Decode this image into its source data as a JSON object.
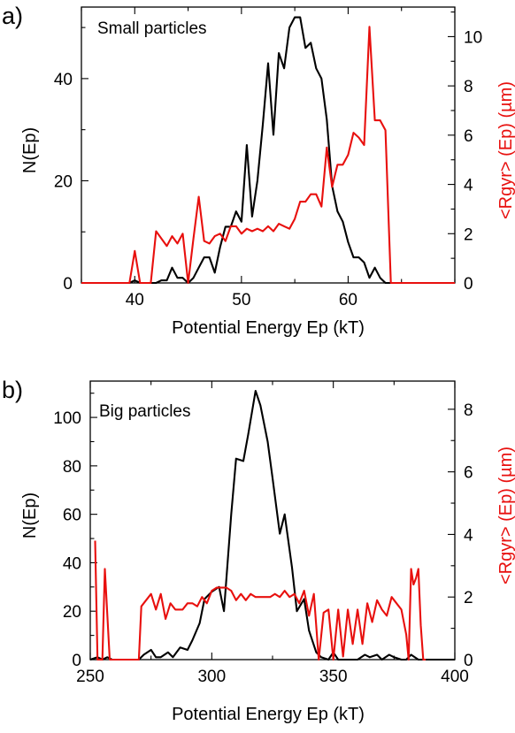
{
  "chart_data": [
    {
      "type": "line",
      "panel_label": "a)",
      "annotation": "Small particles",
      "xlabel": "Potential Energy Ep (kT)",
      "ylabel_left": "N(Ep)",
      "ylabel_right": "<Rgyr> (Ep) (µm)",
      "xlim": [
        35,
        70
      ],
      "ylim_left": [
        0,
        54
      ],
      "ylim_right": [
        0,
        11.2
      ],
      "x_ticks": [
        40,
        50,
        60
      ],
      "y_left_ticks": [
        0,
        20,
        40
      ],
      "y_right_ticks": [
        0,
        2,
        4,
        6,
        8,
        10
      ],
      "colors": {
        "left": "#000000",
        "right": "#e8100e"
      },
      "series": [
        {
          "axis": "left",
          "color": "#000000",
          "x": [
            35,
            39.5,
            40,
            40.5,
            42,
            42.5,
            43,
            43.5,
            44,
            44.5,
            45,
            45.5,
            46,
            46.5,
            47,
            47.5,
            48,
            48.5,
            49,
            49.5,
            50,
            50.5,
            51,
            51.5,
            52,
            52.5,
            53,
            53.5,
            54,
            54.5,
            55,
            55.5,
            56,
            56.5,
            57,
            57.5,
            58,
            58.5,
            59,
            59.5,
            60,
            60.5,
            61,
            61.5,
            62,
            62.5,
            63,
            63.5,
            64,
            70
          ],
          "y": [
            0,
            0,
            0.5,
            0,
            0,
            0.5,
            0.5,
            3,
            1,
            1,
            0,
            1,
            3,
            5,
            5,
            2,
            7,
            11,
            11,
            14,
            12,
            27,
            13,
            20,
            31,
            43,
            29,
            45,
            42,
            50,
            52,
            52,
            46,
            47,
            42,
            40,
            32,
            19,
            14,
            12,
            8,
            5,
            5,
            4,
            1,
            3,
            1,
            0,
            0,
            0
          ]
        },
        {
          "axis": "right",
          "color": "#e8100e",
          "x": [
            35,
            39.5,
            40,
            40.5,
            41.5,
            42,
            43,
            43.5,
            44,
            44.5,
            45,
            45.5,
            46,
            46.5,
            47,
            47.5,
            48,
            48.5,
            49,
            49.5,
            50,
            50.5,
            51,
            51.5,
            52,
            52.5,
            53,
            53.5,
            54,
            54.5,
            55,
            55.5,
            56,
            56.5,
            57,
            57.5,
            58,
            58.5,
            59,
            59.5,
            60,
            60.5,
            61,
            61.5,
            62,
            62.5,
            63,
            63.5,
            64,
            70
          ],
          "y": [
            0,
            0,
            1.3,
            0,
            0,
            2.1,
            1.5,
            1.9,
            1.6,
            2.0,
            0,
            1.8,
            3.5,
            1.7,
            1.6,
            1.9,
            2.0,
            1.7,
            2.3,
            2.3,
            2.0,
            2.2,
            2.1,
            2.2,
            2.1,
            2.3,
            2.1,
            2.4,
            2.3,
            2.2,
            2.6,
            3.3,
            3.3,
            3.6,
            3.6,
            3.1,
            5.5,
            3.9,
            4.8,
            4.8,
            5.2,
            6.1,
            5.9,
            5.6,
            10.4,
            6.6,
            6.6,
            6.2,
            0,
            0
          ]
        }
      ]
    },
    {
      "type": "line",
      "panel_label": "b)",
      "annotation": "Big particles",
      "xlabel": "Potential Energy Ep (kT)",
      "ylabel_left": "N(Ep)",
      "ylabel_right": "<Rgyr> (Ep) (µm)",
      "xlim": [
        250,
        400
      ],
      "ylim_left": [
        0,
        115
      ],
      "ylim_right": [
        0,
        8.9
      ],
      "x_ticks": [
        250,
        300,
        350,
        400
      ],
      "y_left_ticks": [
        0,
        20,
        40,
        60,
        80,
        100
      ],
      "y_right_ticks": [
        0,
        2,
        4,
        6,
        8
      ],
      "colors": {
        "left": "#000000",
        "right": "#e8100e"
      },
      "series": [
        {
          "axis": "left",
          "color": "#000000",
          "x": [
            250,
            253,
            255,
            257,
            259,
            262,
            270,
            272,
            275,
            277,
            279,
            282,
            284,
            287,
            290,
            292,
            295,
            297,
            300,
            303,
            305,
            308,
            310,
            313,
            315,
            318,
            320,
            323,
            325,
            328,
            330,
            333,
            335,
            338,
            340,
            343,
            345,
            348,
            350,
            352,
            355,
            360,
            363,
            365,
            368,
            370,
            373,
            375,
            378,
            380,
            382,
            385,
            400
          ],
          "y": [
            0,
            1,
            0,
            1,
            0,
            0,
            0,
            2,
            4,
            1,
            1,
            3,
            1,
            5,
            4,
            8,
            15,
            25,
            28,
            30,
            20,
            60,
            83,
            82,
            93,
            111,
            105,
            90,
            75,
            52,
            60,
            38,
            20,
            25,
            12,
            3,
            1,
            0,
            3,
            0,
            0,
            0,
            2,
            1,
            2,
            0,
            2,
            1,
            0,
            0,
            2,
            0,
            0
          ]
        },
        {
          "axis": "right",
          "color": "#e8100e",
          "x": [
            252,
            253,
            254,
            255,
            256,
            258,
            260,
            270,
            271,
            272,
            275,
            277,
            279,
            281,
            283,
            285,
            288,
            290,
            292,
            294,
            296,
            298,
            300,
            302,
            304,
            306,
            308,
            310,
            312,
            314,
            316,
            318,
            320,
            322,
            324,
            326,
            328,
            330,
            332,
            334,
            336,
            338,
            340,
            342,
            344,
            346,
            348,
            350,
            352,
            354,
            356,
            358,
            360,
            362,
            364,
            366,
            368,
            370,
            372,
            374,
            376,
            378,
            380,
            381,
            382,
            383,
            384,
            385,
            386,
            387,
            388
          ],
          "y": [
            3.8,
            0,
            0,
            0,
            2.9,
            0,
            0,
            0,
            1.7,
            1.8,
            2.1,
            1.6,
            2.1,
            1.3,
            1.8,
            1.6,
            1.6,
            1.8,
            1.8,
            1.7,
            2.0,
            1.8,
            2.2,
            2.3,
            2.3,
            2.3,
            2.2,
            1.9,
            2.1,
            1.9,
            2.1,
            2.0,
            2.0,
            2.0,
            2.0,
            2.1,
            2.0,
            2.2,
            2.0,
            2.1,
            1.8,
            2.2,
            1.4,
            2.1,
            0,
            1.5,
            1.6,
            0,
            1.6,
            0.1,
            1.6,
            0.5,
            1.6,
            0.5,
            1.8,
            1.2,
            1.9,
            1.6,
            1.4,
            2.0,
            1.8,
            1.6,
            0.8,
            0,
            2.9,
            2.4,
            2.6,
            2.9,
            1.1,
            0,
            0
          ]
        }
      ]
    }
  ]
}
